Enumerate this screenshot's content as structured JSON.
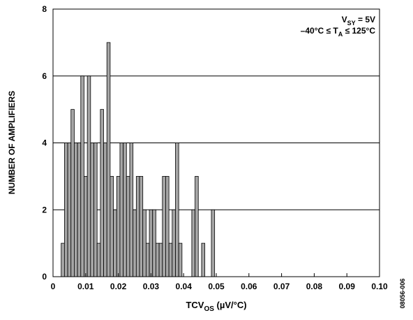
{
  "chart_data": {
    "type": "bar",
    "xlabel": {
      "main": "TCV",
      "sub": "OS",
      "suffix": " (µV/°C)"
    },
    "ylabel": "NUMBER OF AMPLIFIERS",
    "xlim": [
      0,
      0.1
    ],
    "ylim": [
      0,
      8
    ],
    "x_ticks": [
      0,
      0.01,
      0.02,
      0.03,
      0.04,
      0.05,
      0.06,
      0.07,
      0.08,
      0.09,
      0.1
    ],
    "x_tick_labels": [
      "0",
      "0.01",
      "0.02",
      "0.03",
      "0.04",
      "0.05",
      "0.06",
      "0.07",
      "0.08",
      "0.09",
      "0.10"
    ],
    "y_ticks": [
      0,
      2,
      4,
      6,
      8
    ],
    "y_tick_labels": [
      "0",
      "2",
      "4",
      "6",
      "8"
    ],
    "bin_width": 0.001,
    "bar_color": "#a6a6a6",
    "grid": {
      "horizontal": true,
      "vertical": false
    },
    "x": [
      0.003,
      0.004,
      0.005,
      0.006,
      0.007,
      0.008,
      0.009,
      0.01,
      0.011,
      0.012,
      0.013,
      0.014,
      0.015,
      0.016,
      0.017,
      0.018,
      0.019,
      0.02,
      0.021,
      0.022,
      0.023,
      0.024,
      0.025,
      0.026,
      0.027,
      0.028,
      0.029,
      0.03,
      0.031,
      0.032,
      0.033,
      0.034,
      0.035,
      0.036,
      0.037,
      0.038,
      0.039,
      0.04,
      0.041,
      0.042,
      0.043,
      0.044,
      0.045,
      0.046,
      0.047,
      0.048,
      0.049,
      0.05
    ],
    "values": [
      1,
      4,
      4,
      5,
      4,
      4,
      6,
      3,
      6,
      4,
      4,
      1,
      5,
      4,
      7,
      3,
      2,
      3,
      4,
      4,
      3,
      4,
      2,
      3,
      3,
      2,
      1,
      2,
      2,
      1,
      1,
      3,
      3,
      1,
      2,
      4,
      1,
      0,
      0,
      0,
      2,
      3,
      0,
      1,
      0,
      0,
      2,
      0
    ],
    "annotations": [
      {
        "parts": [
          {
            "text": "V",
            "style": "normal"
          },
          {
            "text": "SY",
            "style": "sub"
          },
          {
            "text": " = 5V",
            "style": "normal"
          }
        ]
      },
      {
        "parts": [
          {
            "text": "–40°C ≤ T",
            "style": "normal"
          },
          {
            "text": "A",
            "style": "sub"
          },
          {
            "text": " ≤ 125°C",
            "style": "normal"
          }
        ]
      }
    ],
    "figure_id": "08056-006"
  }
}
